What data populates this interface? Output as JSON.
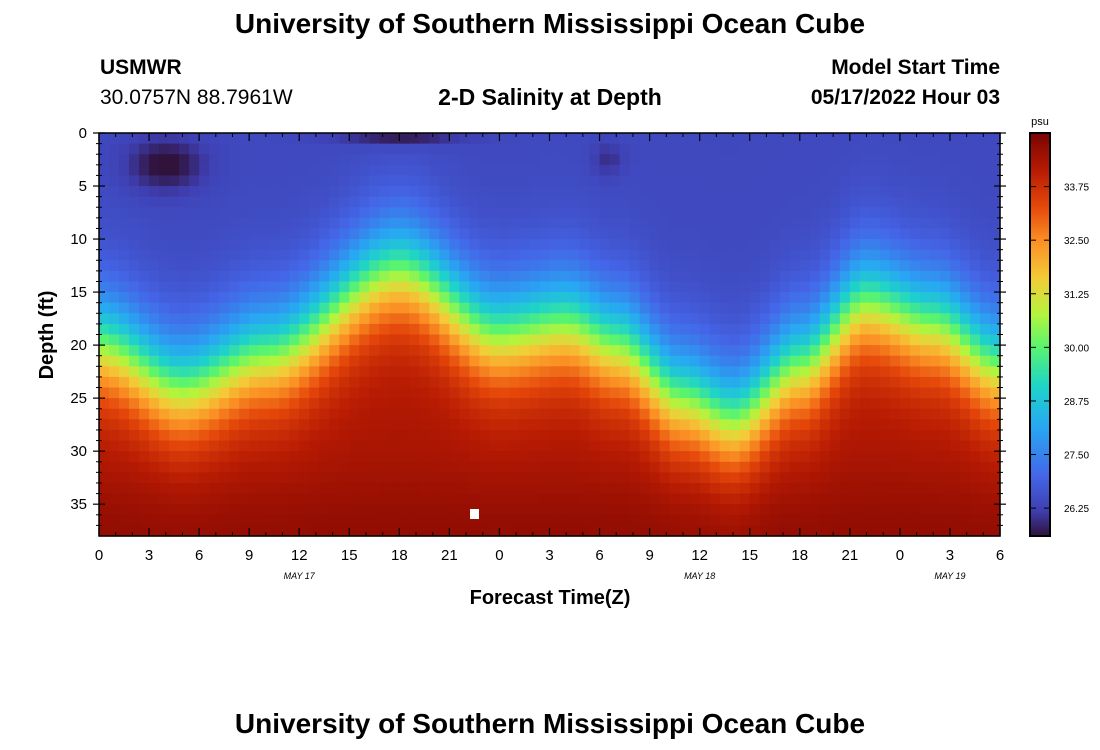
{
  "header": {
    "title": "University of Southern Mississippi Ocean Cube",
    "station": "USMWR",
    "coordinates": "30.0757N  88.7961W",
    "subtitle": "2-D Salinity at Depth",
    "model_start_label": "Model Start Time",
    "model_start_value": "05/17/2022 Hour 03"
  },
  "footer": {
    "title": "University of Southern Mississippi Ocean Cube"
  },
  "chart_data": {
    "type": "heatmap",
    "title": "2-D Salinity at Depth",
    "xlabel": "Forecast Time(Z)",
    "ylabel": "Depth (ft)",
    "x_tick_labels": [
      "0",
      "3",
      "6",
      "9",
      "12",
      "15",
      "18",
      "21",
      "0",
      "3",
      "6",
      "9",
      "12",
      "15",
      "18",
      "21",
      "0",
      "3",
      "6"
    ],
    "x_range_hours": [
      0,
      54
    ],
    "day_labels": [
      {
        "label": "MAY 17",
        "hour": 12
      },
      {
        "label": "MAY 18",
        "hour": 36
      },
      {
        "label": "MAY 19",
        "hour": 51
      }
    ],
    "y_tick_labels": [
      "0",
      "5",
      "10",
      "15",
      "20",
      "25",
      "30",
      "35"
    ],
    "y_range_ft": [
      0,
      38
    ],
    "colorbar": {
      "unit": "psu",
      "ticks": [
        "33.75",
        "32.50",
        "31.25",
        "30.00",
        "28.75",
        "27.50",
        "26.25"
      ],
      "range": [
        25.6,
        35.0
      ]
    },
    "field_description_profile": {
      "surface_psu": 26.4,
      "bottom_psu": 34.3
    },
    "halocline_depth_by_hour": [
      {
        "hour": 0,
        "depth_ft": 20
      },
      {
        "hour": 5,
        "depth_ft": 24
      },
      {
        "hour": 10,
        "depth_ft": 21
      },
      {
        "hour": 18,
        "depth_ft": 13
      },
      {
        "hour": 24,
        "depth_ft": 19
      },
      {
        "hour": 28,
        "depth_ft": 18
      },
      {
        "hour": 31,
        "depth_ft": 20
      },
      {
        "hour": 35,
        "depth_ft": 25
      },
      {
        "hour": 38,
        "depth_ft": 27
      },
      {
        "hour": 42,
        "depth_ft": 22
      },
      {
        "hour": 46,
        "depth_ft": 16
      },
      {
        "hour": 50,
        "depth_ft": 18
      },
      {
        "hour": 54,
        "depth_ft": 22
      }
    ]
  }
}
